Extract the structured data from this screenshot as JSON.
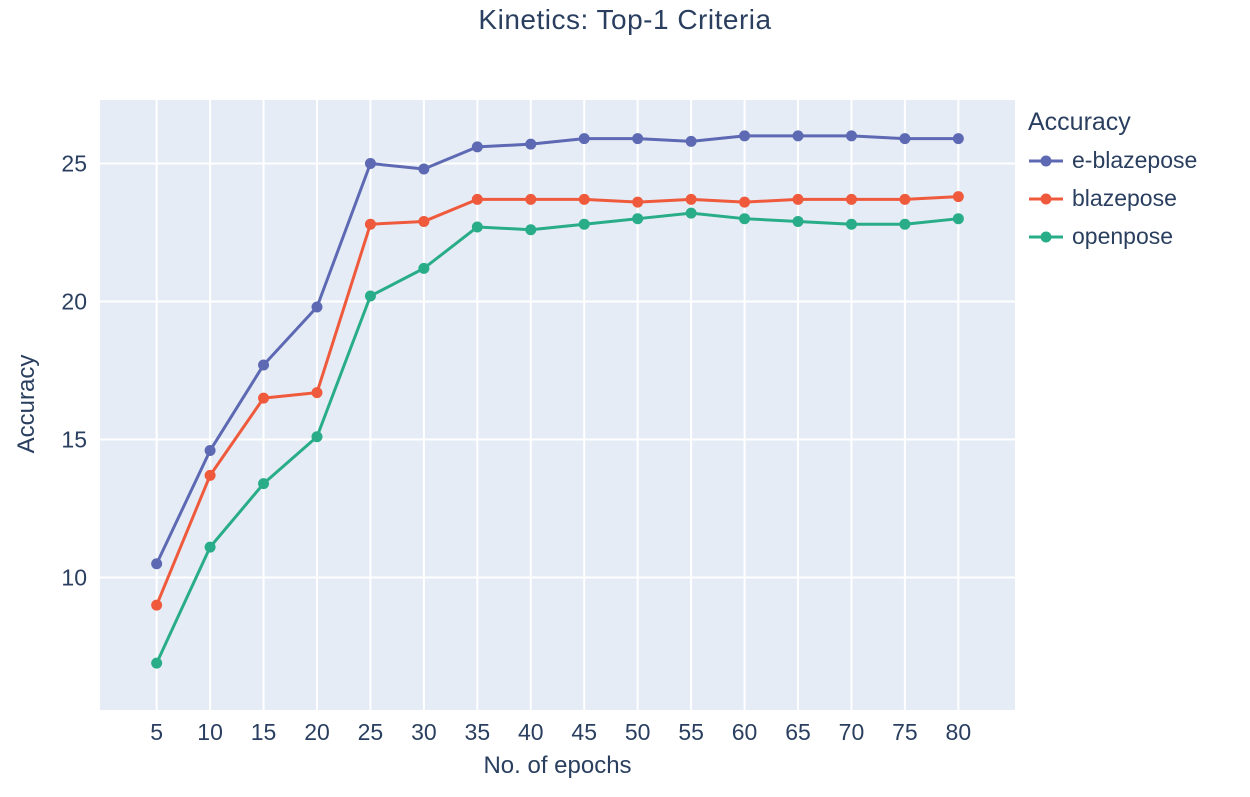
{
  "chart_data": {
    "type": "line",
    "title": "Kinetics: Top-1 Criteria",
    "xlabel": "No. of epochs",
    "ylabel": "Accuracy",
    "legend_title": "Accuracy",
    "legend_position": "top-right-outside",
    "grid": true,
    "x": [
      5,
      10,
      15,
      20,
      25,
      30,
      35,
      40,
      45,
      50,
      55,
      60,
      65,
      70,
      75,
      80
    ],
    "xticks": [
      5,
      10,
      15,
      20,
      25,
      30,
      35,
      40,
      45,
      50,
      55,
      60,
      65,
      70,
      75,
      80
    ],
    "yticks": [
      10,
      15,
      20,
      25
    ],
    "xlim": [
      -0.3,
      85.3
    ],
    "ylim": [
      5.2,
      27.3
    ],
    "series": [
      {
        "name": "e-blazepose",
        "color": "#5d69b3",
        "values": [
          10.5,
          14.6,
          17.7,
          19.8,
          25.0,
          24.8,
          25.6,
          25.7,
          25.9,
          25.9,
          25.8,
          26.0,
          26.0,
          26.0,
          25.9,
          25.9
        ]
      },
      {
        "name": "blazepose",
        "color": "#ef5a3c",
        "values": [
          9.0,
          13.7,
          16.5,
          16.7,
          22.8,
          22.9,
          23.7,
          23.7,
          23.7,
          23.6,
          23.7,
          23.6,
          23.7,
          23.7,
          23.7,
          23.8
        ]
      },
      {
        "name": "openpose",
        "color": "#29ad88",
        "values": [
          6.9,
          11.1,
          13.4,
          15.1,
          20.2,
          21.2,
          22.7,
          22.6,
          22.8,
          23.0,
          23.2,
          23.0,
          22.9,
          22.8,
          22.8,
          23.0
        ]
      }
    ],
    "colors": {
      "plot_bg": "#e5ecf6",
      "grid": "#ffffff",
      "text": "#2a3f5f"
    }
  }
}
